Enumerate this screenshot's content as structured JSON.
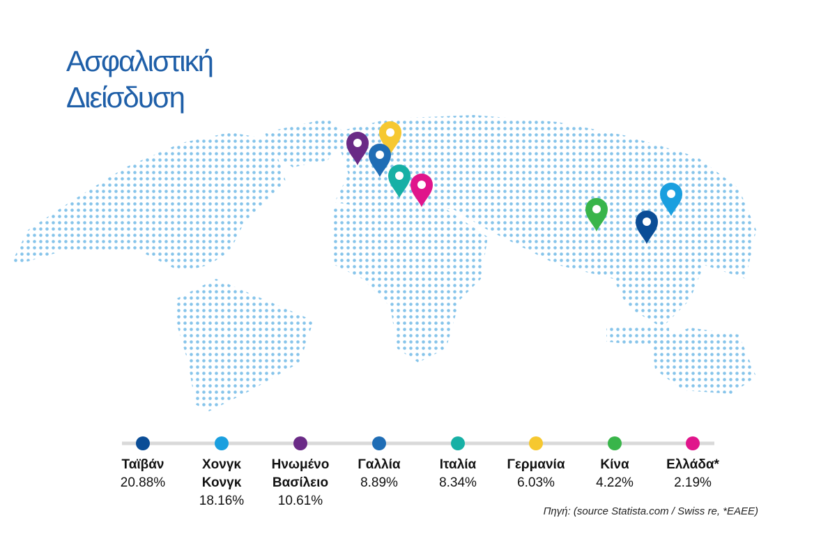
{
  "header": {
    "title": [
      "Ασφαλιστική",
      "Διείσδυση"
    ]
  },
  "items": [
    {
      "name": [
        "Ταϊβάν"
      ],
      "value": "20.88%",
      "color": "#0b4d96"
    },
    {
      "name": [
        "Χονγκ",
        "Κονγκ"
      ],
      "value": "18.16%",
      "color": "#1a9fdf"
    },
    {
      "name": [
        "Ηνωμένο",
        "Βασίλειο"
      ],
      "value": "10.61%",
      "color": "#6a2a86"
    },
    {
      "name": [
        "Γαλλία"
      ],
      "value": "8.89%",
      "color": "#1f6db5"
    },
    {
      "name": [
        "Ιταλία"
      ],
      "value": "8.34%",
      "color": "#17b0a5"
    },
    {
      "name": [
        "Γερμανία"
      ],
      "value": "6.03%",
      "color": "#f6c830"
    },
    {
      "name": [
        "Κίνα"
      ],
      "value": "4.22%",
      "color": "#39b54a"
    },
    {
      "name": [
        "Ελλάδα*"
      ],
      "value": "2.19%",
      "color": "#e0158b"
    }
  ],
  "source": "Πηγή: (source Statista.com / Swiss re, *ΕΑΕΕ)"
}
